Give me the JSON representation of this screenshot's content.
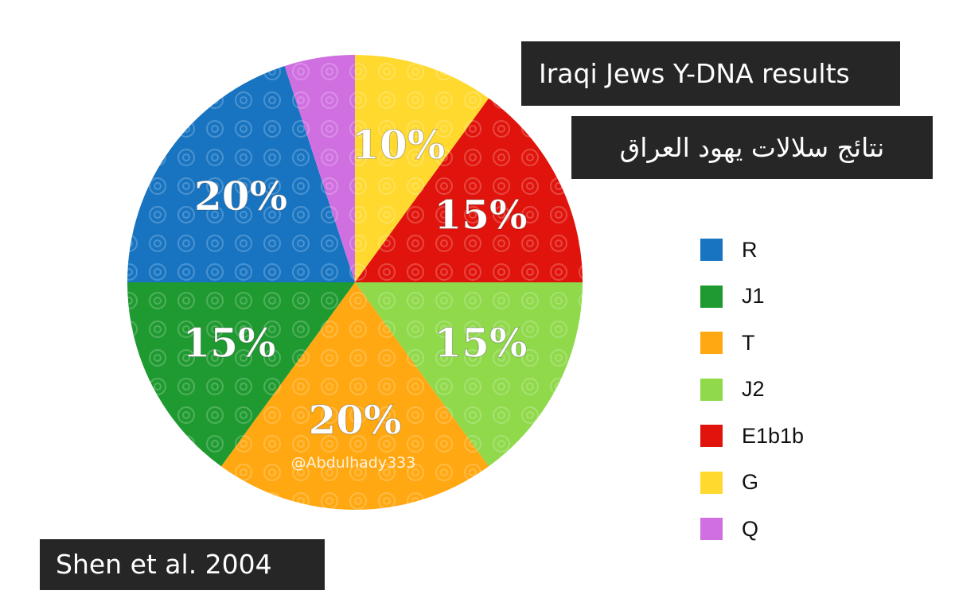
{
  "title_en": "Iraqi Jews Y-DNA results",
  "title_ar": "نتائج سلالات يهود العراق",
  "source": "Shen et al. 2004",
  "watermark": "@Abdulhady333",
  "chart_data": {
    "type": "pie",
    "slices": [
      {
        "label": "G",
        "value": 10,
        "display": "10%",
        "color": "#ffd92e"
      },
      {
        "label": "E1b1b",
        "value": 15,
        "display": "15%",
        "color": "#e0140c"
      },
      {
        "label": "J2",
        "value": 15,
        "display": "15%",
        "color": "#8fd94a"
      },
      {
        "label": "T",
        "value": 20,
        "display": "20%",
        "color": "#ffa812"
      },
      {
        "label": "J1",
        "value": 15,
        "display": "15%",
        "color": "#1f9a30"
      },
      {
        "label": "R",
        "value": 20,
        "display": "20%",
        "color": "#1874c1"
      },
      {
        "label": "Q",
        "value": 5,
        "display": "",
        "color": "#cf6fe0"
      }
    ],
    "legend": [
      {
        "label": "R",
        "color": "#1874c1"
      },
      {
        "label": "J1",
        "color": "#1f9a30"
      },
      {
        "label": "T",
        "color": "#ffa812"
      },
      {
        "label": "J2",
        "color": "#8fd94a"
      },
      {
        "label": "E1b1b",
        "color": "#e0140c"
      },
      {
        "label": "G",
        "color": "#ffd92e"
      },
      {
        "label": "Q",
        "color": "#cf6fe0"
      }
    ],
    "legend_position": "right"
  }
}
